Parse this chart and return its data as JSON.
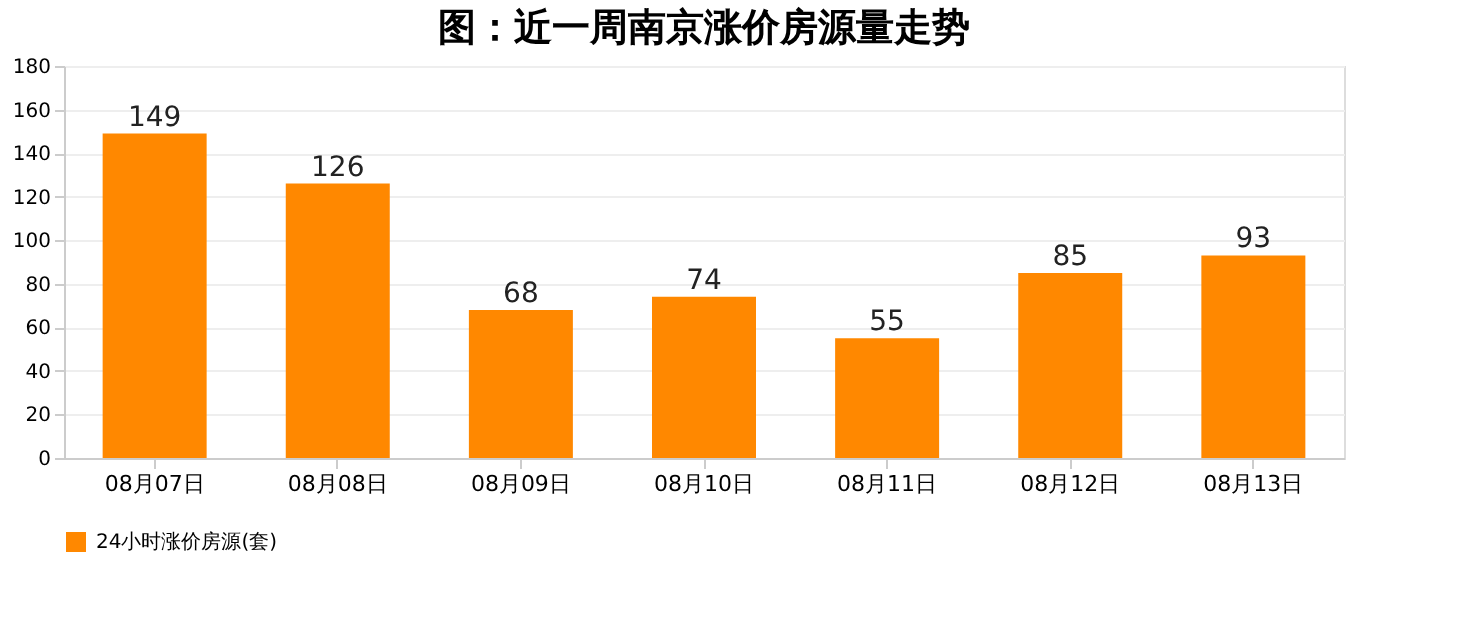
{
  "chart_data": {
    "type": "bar",
    "title": "图：近一周南京涨价房源量走势",
    "categories": [
      "08月07日",
      "08月08日",
      "08月09日",
      "08月10日",
      "08月11日",
      "08月12日",
      "08月13日"
    ],
    "series": [
      {
        "name": "24小时涨价房源(套)",
        "color": "#ff8800",
        "values": [
          149,
          126,
          68,
          74,
          55,
          85,
          93
        ]
      }
    ],
    "ylim": [
      0,
      180
    ],
    "yticks": [
      0,
      20,
      40,
      60,
      80,
      100,
      120,
      140,
      160,
      180
    ],
    "grid": "y",
    "legend": "bottom",
    "data_labels": true
  }
}
